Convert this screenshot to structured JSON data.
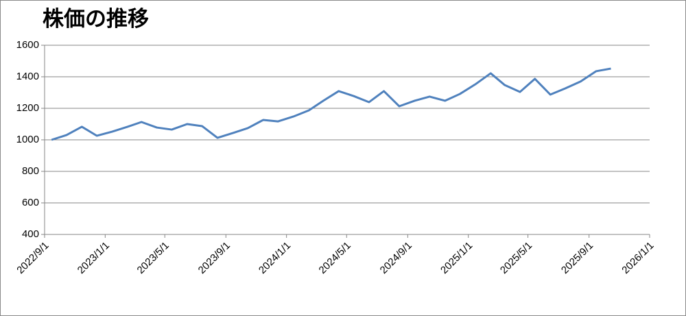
{
  "chart_data": {
    "type": "line",
    "title": "株価の推移",
    "x": [
      "2022/9/15",
      "2022/10/15",
      "2022/11/15",
      "2022/12/15",
      "2023/1/15",
      "2023/2/15",
      "2023/3/15",
      "2023/4/15",
      "2023/5/15",
      "2023/6/15",
      "2023/7/15",
      "2023/8/15",
      "2023/9/15",
      "2023/10/15",
      "2023/11/15",
      "2023/12/15",
      "2024/1/15",
      "2024/2/15",
      "2024/3/15",
      "2024/4/15",
      "2024/5/15",
      "2024/6/15",
      "2024/7/15",
      "2024/8/15",
      "2024/9/15",
      "2024/10/15",
      "2024/11/15",
      "2024/12/15",
      "2025/1/15",
      "2025/2/15",
      "2025/3/15",
      "2025/4/15",
      "2025/5/15",
      "2025/6/15",
      "2025/7/15",
      "2025/8/15",
      "2025/9/15",
      "2025/10/15"
    ],
    "series": [
      {
        "color": "#4f81bd",
        "values": [
          1000,
          1030,
          1083,
          1026,
          1052,
          1083,
          1113,
          1078,
          1065,
          1100,
          1087,
          1013,
          1043,
          1074,
          1126,
          1117,
          1148,
          1187,
          1248,
          1309,
          1278,
          1239,
          1309,
          1213,
          1248,
          1274,
          1248,
          1291,
          1352,
          1422,
          1348,
          1304,
          1387,
          1287,
          1326,
          1370,
          1435,
          1452
        ]
      }
    ],
    "xlim": [
      "2022/9/1",
      "2026/1/1"
    ],
    "xticks": [
      "2022/9/1",
      "2023/1/1",
      "2023/5/1",
      "2023/9/1",
      "2024/1/1",
      "2024/5/1",
      "2024/9/1",
      "2025/1/1",
      "2025/5/1",
      "2025/9/1",
      "2026/1/1"
    ],
    "ylim": [
      400,
      1600
    ],
    "yticks": [
      400,
      600,
      800,
      1000,
      1200,
      1400,
      1600
    ],
    "grid": true
  }
}
